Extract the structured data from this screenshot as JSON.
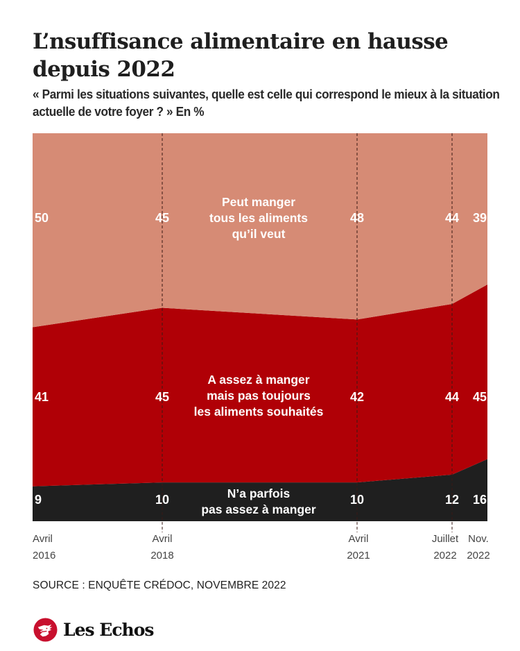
{
  "header": {
    "title": "L’nsuffisance alimentaire en hausse depuis 2022",
    "subtitle": "« Parmi les situations suivantes, quelle est celle qui correspond le mieux à la situation actuelle de votre foyer ? » En %"
  },
  "chart_data": {
    "type": "area",
    "stacked": true,
    "stack_total": 100,
    "unit": "%",
    "title": "L’nsuffisance alimentaire en hausse depuis 2022",
    "subtitle": "« Parmi les situations suivantes, quelle est celle qui correspond le mieux à la situation actuelle de votre foyer ? » En %",
    "xlabel": "",
    "ylabel": "",
    "ylim": [
      0,
      100
    ],
    "grid": false,
    "legend": "inline labels",
    "categories": [
      {
        "month": "Avril",
        "year": "2016",
        "date": "2016-04"
      },
      {
        "month": "Avril",
        "year": "2018",
        "date": "2018-04"
      },
      {
        "month": "Avril",
        "year": "2021",
        "date": "2021-04"
      },
      {
        "month": "Juillet",
        "year": "2022",
        "date": "2022-07"
      },
      {
        "month": "Nov.",
        "year": "2022",
        "date": "2022-11"
      }
    ],
    "reference_lines_at": [
      "2018-04",
      "2021-04",
      "2022-07"
    ],
    "series": [
      {
        "name": "N’a parfois pas assez à manger",
        "label_lines": [
          "N’a parfois",
          "pas assez à manger"
        ],
        "color": "#1f1f1f",
        "values": [
          9,
          10,
          10,
          12,
          16
        ]
      },
      {
        "name": "A assez à manger mais pas toujours les aliments souhaités",
        "label_lines": [
          "A assez à manger",
          "mais pas toujours",
          "les aliments souhaités"
        ],
        "color": "#b00006",
        "values": [
          41,
          45,
          42,
          44,
          45
        ]
      },
      {
        "name": "Peut manger tous les aliments qu’il veut",
        "label_lines": [
          "Peut manger",
          "tous les aliments",
          "qu’il veut"
        ],
        "color": "#d68b75",
        "values": [
          50,
          45,
          48,
          44,
          39
        ]
      }
    ]
  },
  "footer": {
    "source": "SOURCE : ENQUÊTE CRÉDOC, NOVEMBRE 2022",
    "logo_text": "Les Echos",
    "logo_color": "#c8102e"
  }
}
